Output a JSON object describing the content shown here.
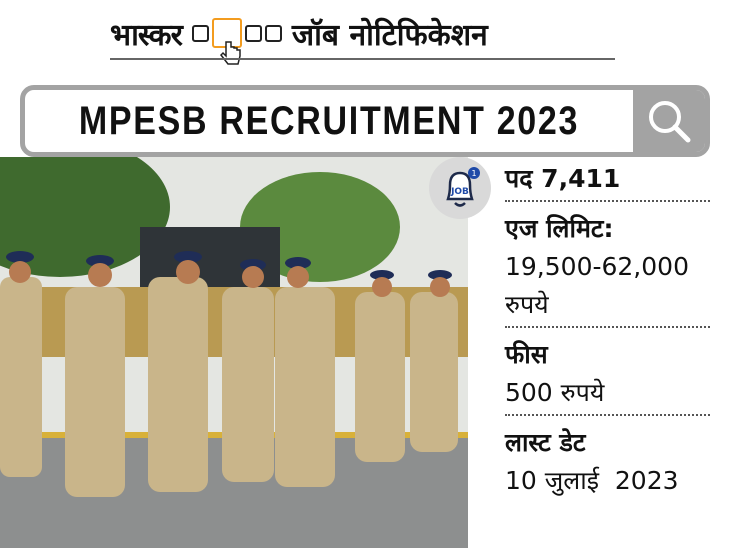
{
  "header": {
    "brand": "भास्कर",
    "title": "जॉब नोटिफिकेशन",
    "accent_color": "#f39c1f"
  },
  "search": {
    "query": "MPESB RECRUITMENT 2023",
    "icon": "search-icon",
    "border_color": "#a3a3a3"
  },
  "badge": {
    "label": "JOB",
    "count": "1",
    "icon": "bell-icon"
  },
  "details": {
    "posts": "पद 7,411",
    "age_label": "एज लिमिट:",
    "salary_range": "19,500-62,000",
    "salary_unit": "रुपये",
    "fee_label": "फीस",
    "fee_value": "500 रुपये",
    "last_date_label": "लास्ट डेट",
    "last_date_value": "10 जुलाई  2023"
  }
}
